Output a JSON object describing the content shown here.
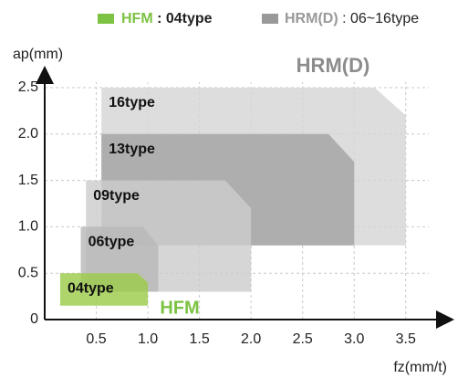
{
  "chart_data": {
    "type": "region",
    "legend": [
      {
        "name": "HFM",
        "text": ": 04type",
        "color": "#7dc242"
      },
      {
        "name": "HRM(D)",
        "text": ": 06~16type",
        "color": "#999999"
      }
    ],
    "annotations": [
      "HRM(D)",
      "HFM"
    ],
    "xlabel": "fz(mm/t)",
    "ylabel": "ap(mm)",
    "xlim": [
      0,
      3.9
    ],
    "ylim": [
      0,
      2.5
    ],
    "xticks": [
      0.5,
      {
        "value": 1,
        "label": "1.0"
      },
      1.5,
      {
        "value": 2,
        "label": "2.0"
      },
      2.5,
      {
        "value": 3,
        "label": "3.0"
      },
      3.5
    ],
    "yticks": [
      0,
      0.5,
      {
        "value": 1,
        "label": "1.0"
      },
      1.5,
      {
        "value": 2,
        "label": "2.0"
      },
      2.5
    ],
    "grid": true,
    "series": [
      {
        "name": "16type",
        "color": "#d6d6d6",
        "x": [
          0.55,
          0.55,
          3.2,
          3.5,
          3.5
        ],
        "y": [
          0.8,
          2.5,
          2.5,
          2.2,
          0.8
        ]
      },
      {
        "name": "13type",
        "color": "#a3a3a3",
        "x": [
          0.55,
          0.55,
          2.75,
          3.0,
          3.0
        ],
        "y": [
          0.8,
          2.0,
          2.0,
          1.7,
          0.8
        ]
      },
      {
        "name": "09type",
        "color": "#cdcdcd",
        "x": [
          0.4,
          0.4,
          1.75,
          2.0,
          2.0
        ],
        "y": [
          0.3,
          1.5,
          1.5,
          1.2,
          0.3
        ]
      },
      {
        "name": "06type",
        "color": "#b8b8b8",
        "x": [
          0.35,
          0.35,
          0.95,
          1.1,
          1.1
        ],
        "y": [
          0.3,
          1.0,
          1.0,
          0.8,
          0.3
        ]
      },
      {
        "name": "04type",
        "color": "#9ccc4a",
        "x": [
          0.15,
          0.15,
          0.9,
          1.0,
          1.0
        ],
        "y": [
          0.15,
          0.5,
          0.5,
          0.4,
          0.15
        ]
      }
    ]
  }
}
